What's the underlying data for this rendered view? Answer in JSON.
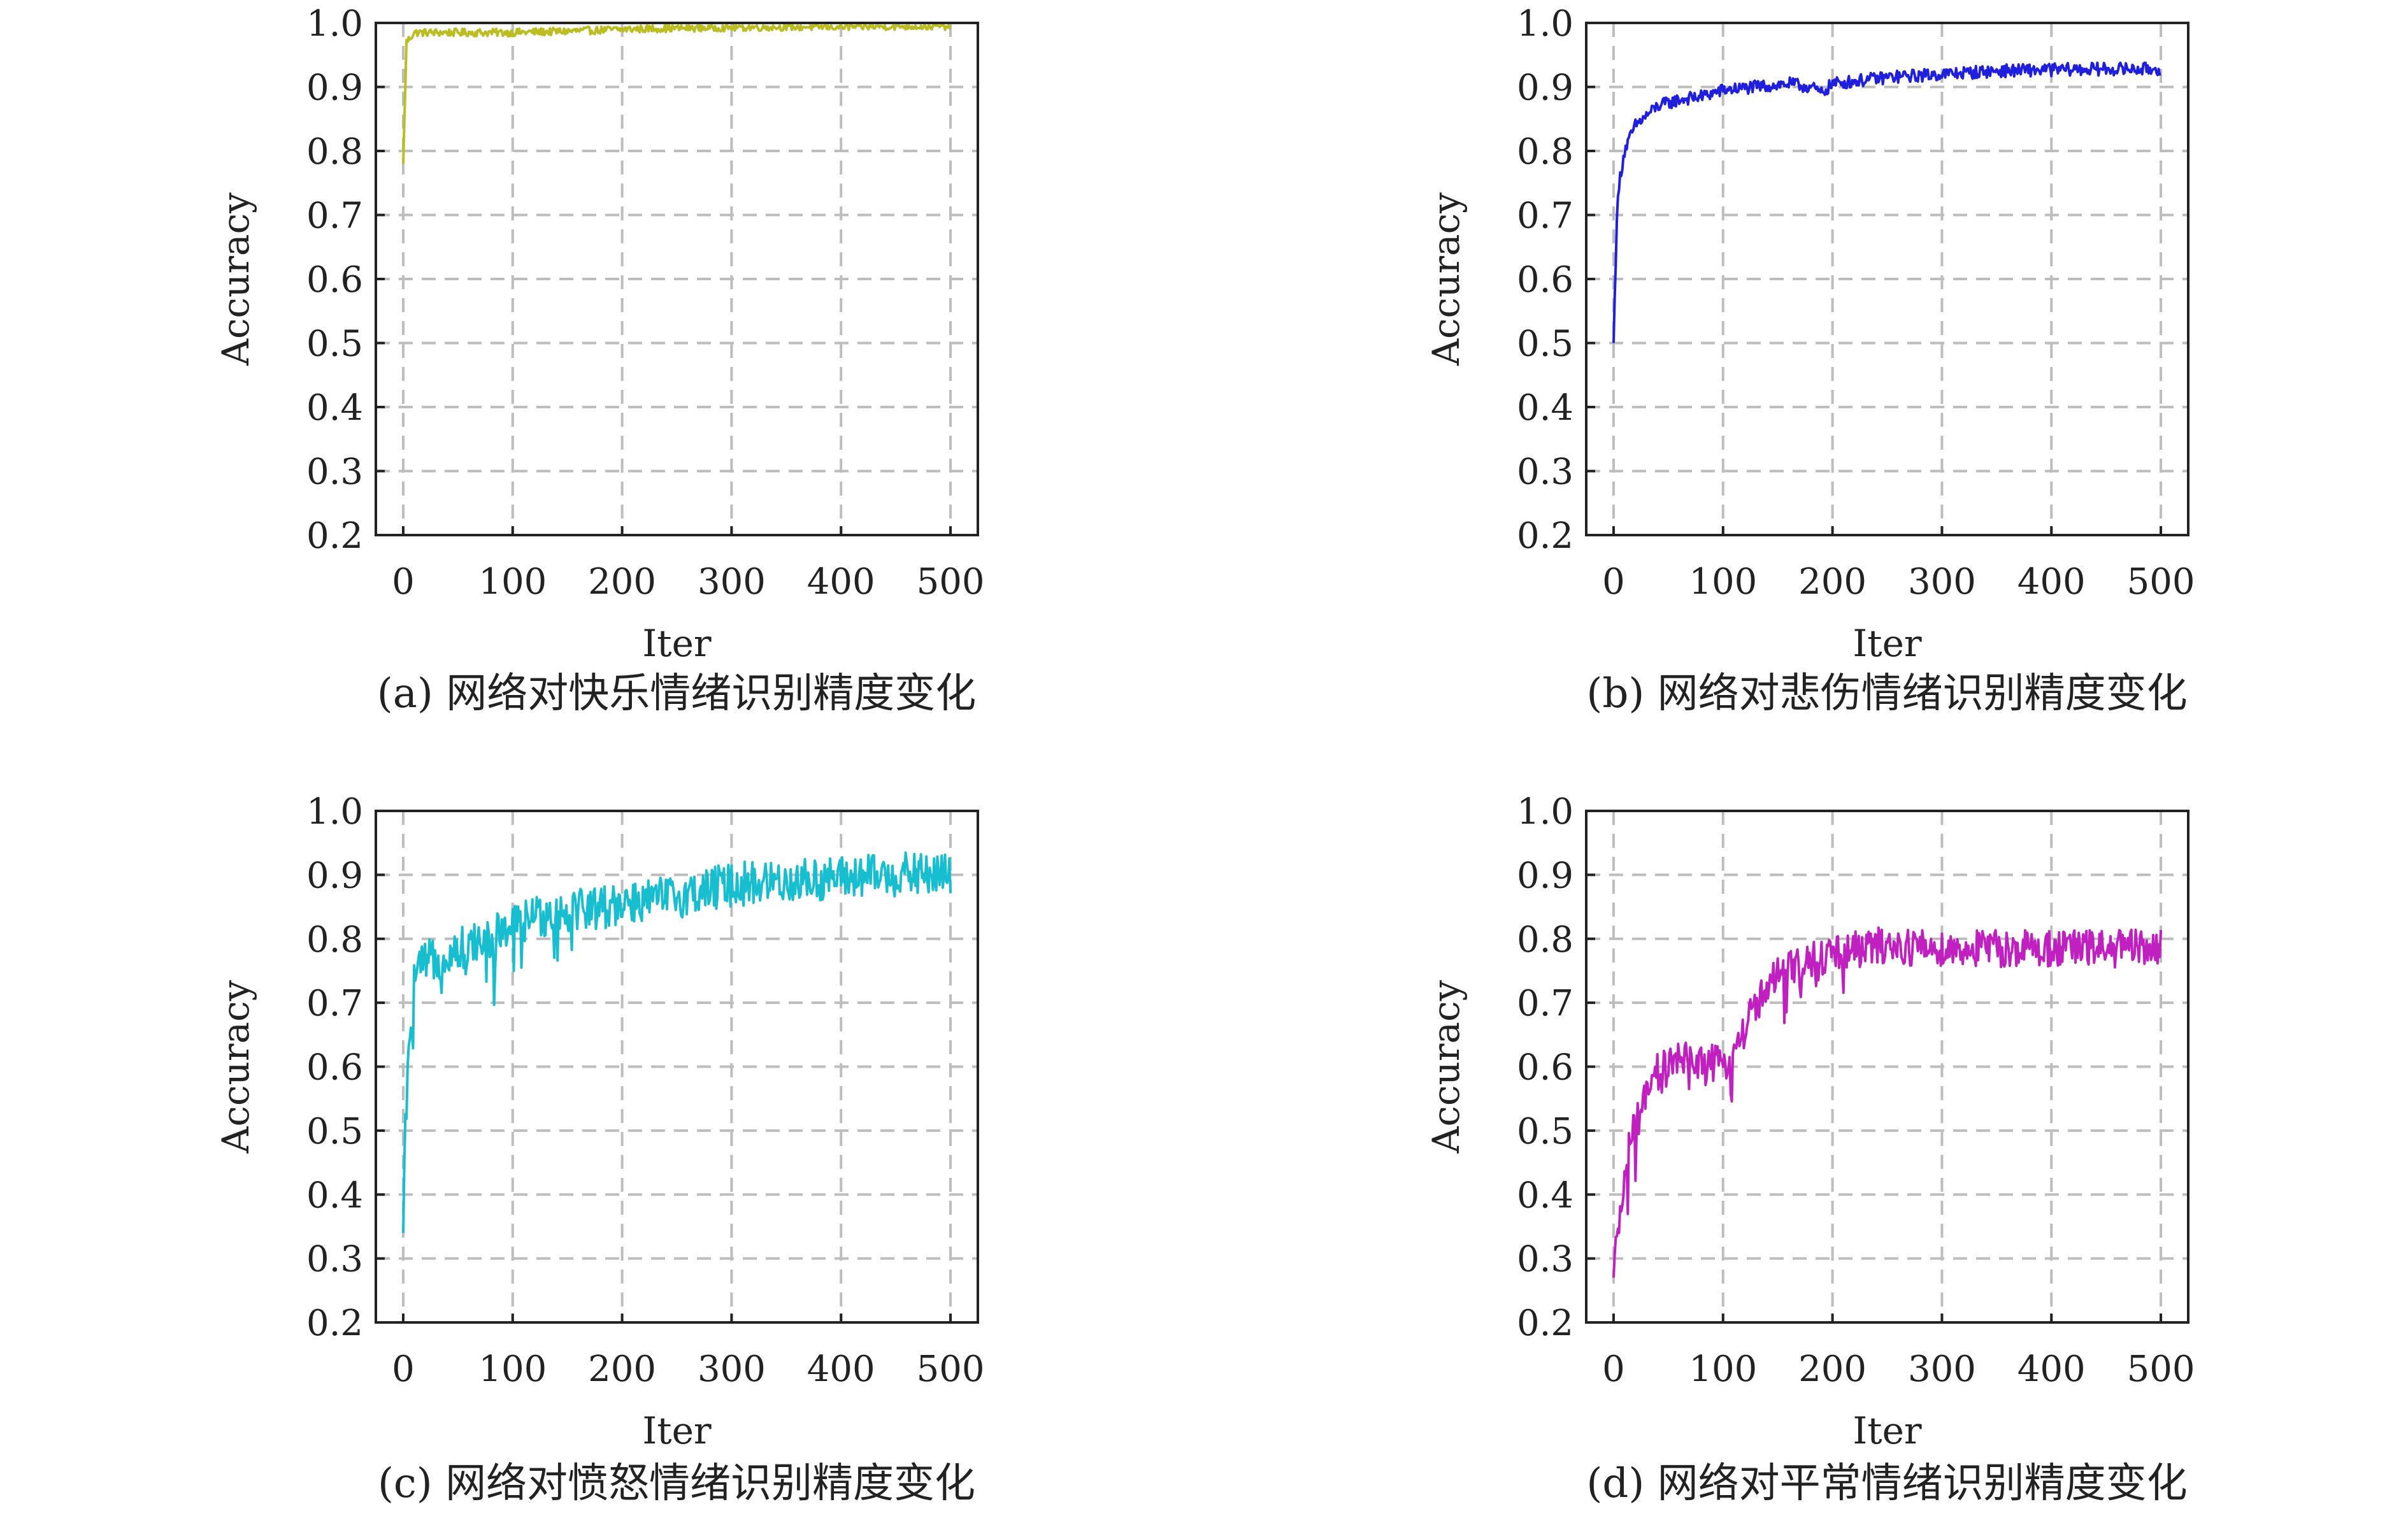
{
  "chart_data": [
    {
      "type": "line",
      "caption": "(a) 网络对快乐情绪识别精度变化",
      "xlabel": "Iter",
      "ylabel": "Accuracy",
      "xlim": [
        -25,
        525
      ],
      "ylim": [
        0.2,
        1.0
      ],
      "xticks": [
        "0",
        "100",
        "200",
        "300",
        "400",
        "500"
      ],
      "yticks": [
        "0.2",
        "0.3",
        "0.4",
        "0.5",
        "0.6",
        "0.7",
        "0.8",
        "0.9",
        "1.0"
      ],
      "grid": true,
      "color": "#bcbd22",
      "series": [
        {
          "x": [
            0,
            3,
            10,
            20,
            50,
            100,
            150,
            200,
            250,
            300,
            350,
            400,
            450,
            500
          ],
          "y": [
            0.78,
            0.97,
            0.985,
            0.985,
            0.985,
            0.985,
            0.987,
            0.99,
            0.992,
            0.993,
            0.994,
            0.994,
            0.995,
            0.995
          ],
          "noise": 0.006
        }
      ]
    },
    {
      "type": "line",
      "caption": "(b) 网络对悲伤情绪识别精度变化",
      "xlabel": "Iter",
      "ylabel": "Accuracy",
      "xlim": [
        -25,
        525
      ],
      "ylim": [
        0.2,
        1.0
      ],
      "xticks": [
        "0",
        "100",
        "200",
        "300",
        "400",
        "500"
      ],
      "yticks": [
        "0.2",
        "0.3",
        "0.4",
        "0.5",
        "0.6",
        "0.7",
        "0.8",
        "0.9",
        "1.0"
      ],
      "grid": true,
      "color": "#1f1fdc",
      "series": [
        {
          "x": [
            0,
            3,
            6,
            10,
            20,
            40,
            60,
            80,
            100,
            130,
            160,
            180,
            190,
            200,
            250,
            300,
            350,
            400,
            450,
            500
          ],
          "y": [
            0.5,
            0.7,
            0.76,
            0.8,
            0.84,
            0.87,
            0.88,
            0.885,
            0.895,
            0.9,
            0.905,
            0.9,
            0.89,
            0.905,
            0.915,
            0.92,
            0.925,
            0.927,
            0.928,
            0.928
          ],
          "noise": 0.01
        }
      ]
    },
    {
      "type": "line",
      "caption": "(c) 网络对愤怒情绪识别精度变化",
      "xlabel": "Iter",
      "ylabel": "Accuracy",
      "xlim": [
        -25,
        525
      ],
      "ylim": [
        0.2,
        1.0
      ],
      "xticks": [
        "0",
        "100",
        "200",
        "300",
        "400",
        "500"
      ],
      "yticks": [
        "0.2",
        "0.3",
        "0.4",
        "0.5",
        "0.6",
        "0.7",
        "0.8",
        "0.9",
        "1.0"
      ],
      "grid": true,
      "color": "#17becf",
      "series": [
        {
          "x": [
            0,
            2,
            5,
            10,
            20,
            40,
            60,
            80,
            100,
            130,
            160,
            185,
            200,
            230,
            260,
            300,
            350,
            400,
            450,
            500
          ],
          "y": [
            0.34,
            0.52,
            0.6,
            0.74,
            0.76,
            0.78,
            0.79,
            0.8,
            0.82,
            0.84,
            0.85,
            0.85,
            0.86,
            0.86,
            0.87,
            0.885,
            0.89,
            0.895,
            0.9,
            0.9
          ],
          "noise": 0.035
        }
      ]
    },
    {
      "type": "line",
      "caption": "(d) 网络对平常情绪识别精度变化",
      "xlabel": "Iter",
      "ylabel": "Accuracy",
      "xlim": [
        -25,
        525
      ],
      "ylim": [
        0.2,
        1.0
      ],
      "xticks": [
        "0",
        "100",
        "200",
        "300",
        "400",
        "500"
      ],
      "yticks": [
        "0.2",
        "0.3",
        "0.4",
        "0.5",
        "0.6",
        "0.7",
        "0.8",
        "0.9",
        "1.0"
      ],
      "grid": true,
      "color": "#c020c0",
      "series": [
        {
          "x": [
            0,
            3,
            8,
            15,
            25,
            40,
            60,
            80,
            100,
            115,
            130,
            150,
            170,
            190,
            210,
            250,
            300,
            350,
            400,
            450,
            500
          ],
          "y": [
            0.27,
            0.32,
            0.4,
            0.48,
            0.53,
            0.59,
            0.61,
            0.61,
            0.6,
            0.64,
            0.7,
            0.74,
            0.76,
            0.77,
            0.78,
            0.79,
            0.785,
            0.785,
            0.785,
            0.785,
            0.785
          ],
          "noise": 0.03
        }
      ]
    }
  ]
}
